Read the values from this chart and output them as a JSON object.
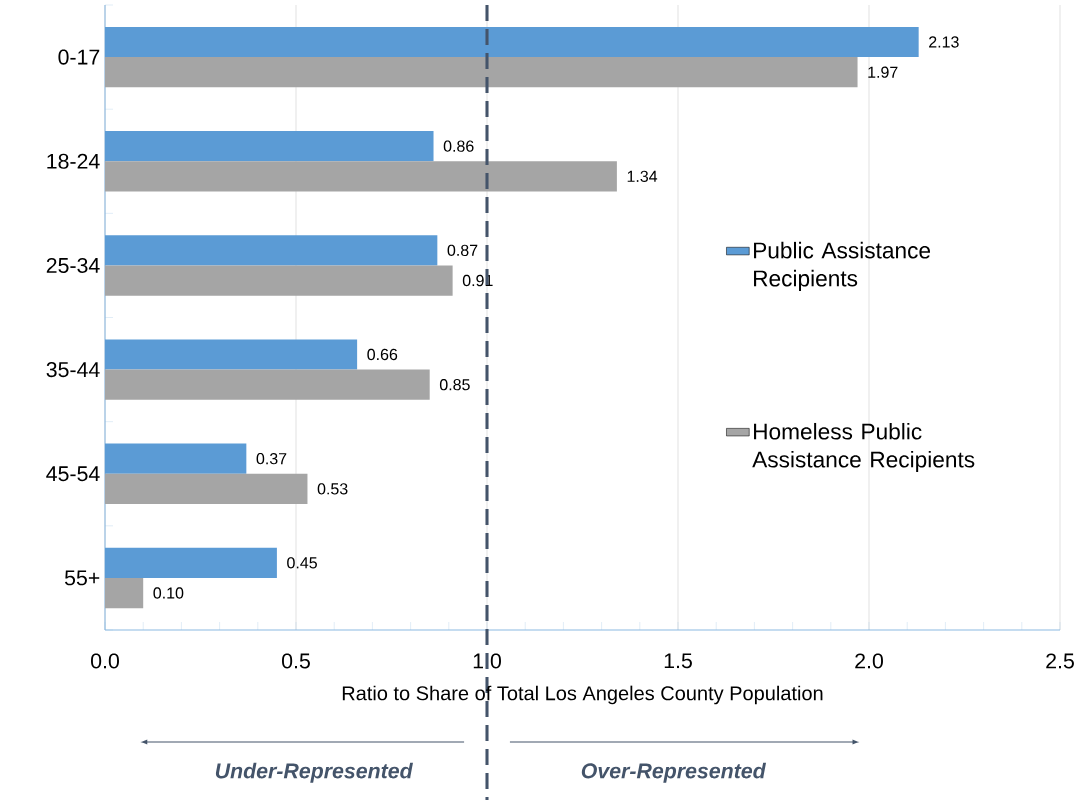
{
  "chart_data": {
    "type": "bar",
    "orientation": "horizontal",
    "categories": [
      "0-17",
      "18-24",
      "25-34",
      "35-44",
      "45-54",
      "55+"
    ],
    "series": [
      {
        "name": "Public Assistance Recipients",
        "color": "#5b9bd5",
        "values": [
          2.13,
          0.86,
          0.87,
          0.66,
          0.37,
          0.45
        ],
        "value_labels": [
          "2.13",
          "0.86",
          "0.87",
          "0.66",
          "0.37",
          "0.45"
        ]
      },
      {
        "name": "Homeless Public Assistance Recipients",
        "color": "#a5a5a5",
        "values": [
          1.97,
          1.34,
          0.91,
          0.85,
          0.53,
          0.1
        ],
        "value_labels": [
          "1.97",
          "1.34",
          "0.91",
          "0.85",
          "0.53",
          "0.10"
        ]
      }
    ],
    "xlim": [
      0,
      2.5
    ],
    "xticks": [
      {
        "value": 0,
        "label": "0.0"
      },
      {
        "value": 0.5,
        "label": "0.5"
      },
      {
        "value": 1,
        "label": "1.0"
      },
      {
        "value": 1.5,
        "label": "1.5"
      },
      {
        "value": 2,
        "label": "2.0"
      },
      {
        "value": 2.5,
        "label": "2.5"
      }
    ],
    "xlabel": "Ratio to Share of Total Los Angeles County Population",
    "grid": "x",
    "legend": "right",
    "ref_lines": [
      {
        "axis": "x",
        "value": 1.0,
        "color": "#44546a",
        "line_style": "dashed"
      }
    ],
    "annotations": [
      "Under-Represented",
      "Over-Represented"
    ]
  }
}
